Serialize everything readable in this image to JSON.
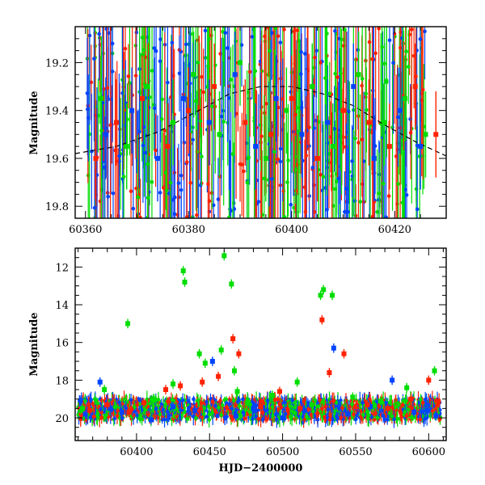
{
  "chart_data": [
    {
      "type": "scatter",
      "title": "",
      "xlabel": "",
      "ylabel": "Magnitude",
      "xlim": [
        60358,
        60430
      ],
      "ylim": [
        19.85,
        19.05
      ],
      "y_inverted": true,
      "x_ticks": [
        "60360",
        "60380",
        "60400",
        "60420"
      ],
      "y_ticks": [
        "19.2",
        "19.4",
        "19.6",
        "19.8"
      ],
      "x_tick_values": [
        60360,
        60380,
        60400,
        60420
      ],
      "y_tick_values": [
        19.2,
        19.4,
        19.6,
        19.8
      ],
      "error_bars": true,
      "model_curve": {
        "style": "dashed",
        "x": [
          60358,
          60366,
          60374,
          60382,
          60388,
          60394,
          60400,
          60406,
          60412,
          60418,
          60424,
          60430
        ],
        "y": [
          19.58,
          19.55,
          19.49,
          19.4,
          19.33,
          19.3,
          19.3,
          19.33,
          19.38,
          19.46,
          19.53,
          19.59
        ]
      },
      "series": [
        {
          "color": "#00dd00",
          "x": [
            60363,
            60368,
            60372,
            60377,
            60381,
            60386,
            60390,
            60395,
            60399,
            60404,
            60408,
            60413,
            60418,
            60422,
            60426
          ],
          "y": [
            19.35,
            19.55,
            19.3,
            19.45,
            19.25,
            19.5,
            19.2,
            19.6,
            19.4,
            19.3,
            19.55,
            19.25,
            19.45,
            19.35,
            19.5
          ]
        },
        {
          "color": "#0044ff",
          "x": [
            60364,
            60369,
            60374,
            60379,
            60384,
            60389,
            60393,
            60397,
            60402,
            60407,
            60412,
            60416,
            60421,
            60425
          ],
          "y": [
            19.5,
            19.4,
            19.6,
            19.35,
            19.45,
            19.25,
            19.55,
            19.35,
            19.5,
            19.45,
            19.3,
            19.6,
            19.4,
            19.55
          ]
        },
        {
          "color": "#ff2200",
          "x": [
            60362,
            60366,
            60371,
            60376,
            60380,
            60385,
            60391,
            60396,
            60400,
            60405,
            60410,
            60415,
            60419,
            60424,
            60428
          ],
          "y": [
            19.6,
            19.45,
            19.35,
            19.55,
            19.4,
            19.3,
            19.45,
            19.5,
            19.35,
            19.6,
            19.4,
            19.45,
            19.55,
            19.3,
            19.5
          ]
        }
      ]
    },
    {
      "type": "scatter",
      "title": "",
      "xlabel": "HJD−2400000",
      "ylabel": "Magnitude",
      "xlim": [
        60358,
        60612
      ],
      "ylim": [
        21.2,
        11.0
      ],
      "y_inverted": true,
      "x_ticks": [
        "60400",
        "60450",
        "60500",
        "60550",
        "60600"
      ],
      "y_ticks": [
        "12",
        "14",
        "16",
        "18",
        "20"
      ],
      "x_tick_values": [
        60400,
        60450,
        60500,
        60550,
        60600
      ],
      "y_tick_values": [
        12,
        14,
        16,
        18,
        20
      ],
      "error_bars": true,
      "series": [
        {
          "color": "#00dd00",
          "x": [
            60363,
            60378,
            60394,
            60412,
            60425,
            60432,
            60433,
            60443,
            60447,
            60458,
            60460,
            60465,
            60467,
            60469,
            60476,
            60493,
            60510,
            60520,
            60526,
            60528,
            60534,
            60548,
            60567,
            60585,
            60604
          ],
          "y": [
            19.5,
            18.5,
            15.0,
            19.0,
            18.2,
            12.2,
            12.8,
            16.6,
            17.1,
            16.4,
            11.4,
            12.9,
            17.5,
            18.6,
            19.2,
            18.8,
            18.1,
            19.3,
            13.5,
            13.2,
            13.5,
            18.9,
            19.1,
            18.4,
            17.5
          ]
        },
        {
          "color": "#0044ff",
          "x": [
            60365,
            60375,
            60382,
            60390,
            60410,
            60425,
            60440,
            60452,
            60468,
            60480,
            60500,
            60515,
            60535,
            60545,
            60560,
            60575,
            60590,
            60605
          ],
          "y": [
            19.8,
            18.1,
            19.5,
            19.7,
            20.1,
            19.4,
            19.6,
            17.0,
            19.9,
            19.5,
            20.0,
            19.6,
            16.3,
            19.8,
            19.4,
            18.0,
            19.7,
            19.9
          ]
        },
        {
          "color": "#ff2200",
          "x": [
            60368,
            60380,
            60395,
            60405,
            60420,
            60430,
            60445,
            60456,
            60466,
            60470,
            60485,
            60498,
            60512,
            60527,
            60532,
            60542,
            60558,
            60572,
            60588,
            60600
          ],
          "y": [
            19.6,
            19.3,
            19.7,
            19.2,
            18.5,
            18.3,
            18.1,
            17.8,
            15.8,
            16.6,
            19.4,
            18.6,
            19.5,
            14.8,
            17.6,
            16.6,
            19.3,
            19.5,
            19.0,
            18.0
          ]
        }
      ]
    }
  ]
}
